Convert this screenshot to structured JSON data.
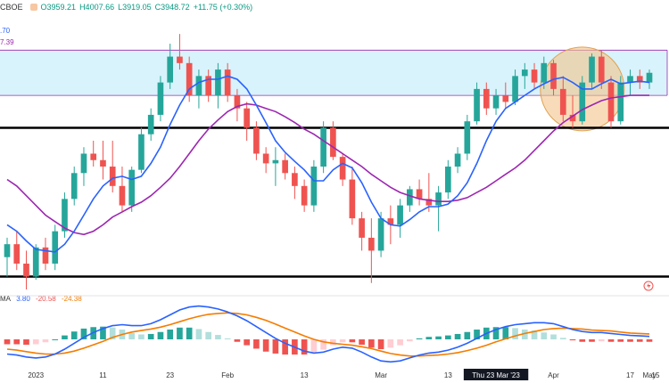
{
  "header": {
    "symbol": "CBOE",
    "open": "O3959.21",
    "high": "H4007.66",
    "low": "L3919.05",
    "close": "C3948.72",
    "change": "+11.75 (+0.30%)"
  },
  "ma_values": {
    "fast": ".70",
    "slow": "7.39"
  },
  "macd_legend": {
    "label": "MA",
    "macd": "3.80",
    "hist": "-20.58",
    "signal": "-24.38"
  },
  "colors": {
    "up": "#26a69a",
    "down": "#ef5350",
    "fast_ma": "#2962ff",
    "slow_ma": "#9c27b0",
    "zone_fill": "#d8f3fb",
    "zone_line": "#9c27b0",
    "circle_fill": "#f4c48a",
    "signal": "#f57c00",
    "macd_line": "#2962ff"
  },
  "chart_data": {
    "type": "candlestick",
    "price_range": [
      3800,
      4200
    ],
    "resistance_zone": [
      4100,
      4170
    ],
    "horizontal_levels": [
      4050,
      3820
    ],
    "x_tick_labels": [
      "2023",
      "11",
      "23",
      "Feb",
      "13",
      "Mar",
      "13",
      "Thu 23 Mar '23",
      "Apr",
      "17",
      "May",
      "15"
    ],
    "highlighted_date": "Thu 23 Mar '23",
    "candles": [
      {
        "o": 3850,
        "h": 3880,
        "l": 3820,
        "c": 3870
      },
      {
        "o": 3870,
        "h": 3890,
        "l": 3830,
        "c": 3840
      },
      {
        "o": 3840,
        "h": 3860,
        "l": 3800,
        "c": 3820
      },
      {
        "o": 3820,
        "h": 3870,
        "l": 3815,
        "c": 3865
      },
      {
        "o": 3865,
        "h": 3880,
        "l": 3830,
        "c": 3840
      },
      {
        "o": 3840,
        "h": 3900,
        "l": 3830,
        "c": 3890
      },
      {
        "o": 3890,
        "h": 3950,
        "l": 3880,
        "c": 3940
      },
      {
        "o": 3940,
        "h": 3990,
        "l": 3930,
        "c": 3980
      },
      {
        "o": 3980,
        "h": 4020,
        "l": 3960,
        "c": 4010
      },
      {
        "o": 4010,
        "h": 4030,
        "l": 3990,
        "c": 4000
      },
      {
        "o": 4000,
        "h": 4030,
        "l": 3970,
        "c": 3990
      },
      {
        "o": 3990,
        "h": 4030,
        "l": 3950,
        "c": 3960
      },
      {
        "o": 3960,
        "h": 3990,
        "l": 3920,
        "c": 3930
      },
      {
        "o": 3930,
        "h": 3990,
        "l": 3920,
        "c": 3985
      },
      {
        "o": 3985,
        "h": 4050,
        "l": 3980,
        "c": 4040
      },
      {
        "o": 4040,
        "h": 4080,
        "l": 4030,
        "c": 4070
      },
      {
        "o": 4070,
        "h": 4130,
        "l": 4060,
        "c": 4120
      },
      {
        "o": 4120,
        "h": 4180,
        "l": 4110,
        "c": 4160
      },
      {
        "o": 4160,
        "h": 4195,
        "l": 4140,
        "c": 4150
      },
      {
        "o": 4150,
        "h": 4160,
        "l": 4090,
        "c": 4100
      },
      {
        "o": 4100,
        "h": 4140,
        "l": 4080,
        "c": 4130
      },
      {
        "o": 4130,
        "h": 4140,
        "l": 4090,
        "c": 4100
      },
      {
        "o": 4100,
        "h": 4150,
        "l": 4080,
        "c": 4140
      },
      {
        "o": 4140,
        "h": 4150,
        "l": 4090,
        "c": 4100
      },
      {
        "o": 4100,
        "h": 4110,
        "l": 4060,
        "c": 4080
      },
      {
        "o": 4080,
        "h": 4090,
        "l": 4030,
        "c": 4050
      },
      {
        "o": 4050,
        "h": 4060,
        "l": 4000,
        "c": 4010
      },
      {
        "o": 4010,
        "h": 4020,
        "l": 3980,
        "c": 3995
      },
      {
        "o": 3995,
        "h": 4020,
        "l": 3960,
        "c": 4000
      },
      {
        "o": 4000,
        "h": 4010,
        "l": 3970,
        "c": 3980
      },
      {
        "o": 3980,
        "h": 3990,
        "l": 3940,
        "c": 3960
      },
      {
        "o": 3960,
        "h": 3970,
        "l": 3920,
        "c": 3930
      },
      {
        "o": 3930,
        "h": 4000,
        "l": 3920,
        "c": 3990
      },
      {
        "o": 3990,
        "h": 4060,
        "l": 3980,
        "c": 4050
      },
      {
        "o": 4050,
        "h": 4060,
        "l": 4000,
        "c": 4005
      },
      {
        "o": 4005,
        "h": 4010,
        "l": 3960,
        "c": 3970
      },
      {
        "o": 3970,
        "h": 3990,
        "l": 3900,
        "c": 3910
      },
      {
        "o": 3910,
        "h": 3920,
        "l": 3860,
        "c": 3880
      },
      {
        "o": 3880,
        "h": 3910,
        "l": 3810,
        "c": 3860
      },
      {
        "o": 3860,
        "h": 3920,
        "l": 3850,
        "c": 3910
      },
      {
        "o": 3910,
        "h": 3930,
        "l": 3870,
        "c": 3900
      },
      {
        "o": 3900,
        "h": 3940,
        "l": 3880,
        "c": 3930
      },
      {
        "o": 3930,
        "h": 3960,
        "l": 3920,
        "c": 3955
      },
      {
        "o": 3955,
        "h": 3970,
        "l": 3930,
        "c": 3940
      },
      {
        "o": 3940,
        "h": 3980,
        "l": 3920,
        "c": 3930
      },
      {
        "o": 3930,
        "h": 3960,
        "l": 3890,
        "c": 3950
      },
      {
        "o": 3950,
        "h": 4000,
        "l": 3940,
        "c": 3990
      },
      {
        "o": 3990,
        "h": 4020,
        "l": 3980,
        "c": 4010
      },
      {
        "o": 4010,
        "h": 4070,
        "l": 4000,
        "c": 4060
      },
      {
        "o": 4060,
        "h": 4120,
        "l": 4055,
        "c": 4110
      },
      {
        "o": 4110,
        "h": 4120,
        "l": 4070,
        "c": 4080
      },
      {
        "o": 4080,
        "h": 4110,
        "l": 4070,
        "c": 4100
      },
      {
        "o": 4100,
        "h": 4120,
        "l": 4080,
        "c": 4090
      },
      {
        "o": 4090,
        "h": 4140,
        "l": 4085,
        "c": 4130
      },
      {
        "o": 4130,
        "h": 4150,
        "l": 4110,
        "c": 4140
      },
      {
        "o": 4140,
        "h": 4150,
        "l": 4110,
        "c": 4120
      },
      {
        "o": 4120,
        "h": 4160,
        "l": 4110,
        "c": 4150
      },
      {
        "o": 4150,
        "h": 4155,
        "l": 4100,
        "c": 4110
      },
      {
        "o": 4110,
        "h": 4130,
        "l": 4060,
        "c": 4070
      },
      {
        "o": 4070,
        "h": 4100,
        "l": 4050,
        "c": 4060
      },
      {
        "o": 4060,
        "h": 4130,
        "l": 4055,
        "c": 4120
      },
      {
        "o": 4120,
        "h": 4165,
        "l": 4110,
        "c": 4160
      },
      {
        "o": 4160,
        "h": 4170,
        "l": 4110,
        "c": 4120
      },
      {
        "o": 4120,
        "h": 4130,
        "l": 4050,
        "c": 4060
      },
      {
        "o": 4060,
        "h": 4130,
        "l": 4055,
        "c": 4120
      },
      {
        "o": 4120,
        "h": 4140,
        "l": 4100,
        "c": 4130
      },
      {
        "o": 4130,
        "h": 4140,
        "l": 4110,
        "c": 4120
      },
      {
        "o": 4120,
        "h": 4140,
        "l": 4110,
        "c": 4135
      }
    ],
    "fast_ma": [
      3900,
      3890,
      3875,
      3862,
      3860,
      3858,
      3870,
      3890,
      3915,
      3940,
      3960,
      3972,
      3975,
      3970,
      3975,
      3995,
      4020,
      4055,
      4085,
      4110,
      4120,
      4125,
      4125,
      4130,
      4125,
      4110,
      4085,
      4058,
      4030,
      4012,
      3998,
      3985,
      3968,
      3968,
      3985,
      3995,
      3988,
      3965,
      3935,
      3910,
      3900,
      3898,
      3908,
      3920,
      3928,
      3928,
      3932,
      3945,
      3965,
      3995,
      4030,
      4060,
      4080,
      4090,
      4100,
      4110,
      4118,
      4125,
      4128,
      4120,
      4110,
      4110,
      4118,
      4125,
      4118,
      4120,
      4122,
      4120
    ],
    "slow_ma": [
      3970,
      3960,
      3945,
      3930,
      3915,
      3905,
      3895,
      3888,
      3885,
      3890,
      3900,
      3912,
      3920,
      3928,
      3935,
      3945,
      3958,
      3972,
      3990,
      4010,
      4030,
      4048,
      4062,
      4075,
      4083,
      4087,
      4085,
      4080,
      4075,
      4067,
      4058,
      4048,
      4040,
      4030,
      4020,
      4010,
      4000,
      3990,
      3978,
      3968,
      3958,
      3950,
      3945,
      3940,
      3938,
      3936,
      3936,
      3938,
      3942,
      3950,
      3958,
      3968,
      3978,
      3988,
      4000,
      4015,
      4030,
      4045,
      4058,
      4068,
      4078,
      4085,
      4092,
      4096,
      4098,
      4100,
      4100,
      4100
    ],
    "macd": {
      "macd_line": [
        -30,
        -32,
        -36,
        -38,
        -36,
        -30,
        -20,
        -8,
        4,
        14,
        22,
        28,
        30,
        28,
        28,
        32,
        40,
        50,
        60,
        66,
        68,
        66,
        62,
        56,
        48,
        38,
        26,
        14,
        2,
        -8,
        -16,
        -24,
        -28,
        -26,
        -20,
        -16,
        -18,
        -26,
        -36,
        -44,
        -46,
        -44,
        -38,
        -32,
        -28,
        -26,
        -22,
        -16,
        -8,
        2,
        12,
        20,
        26,
        30,
        32,
        34,
        34,
        32,
        26,
        20,
        16,
        14,
        14,
        12,
        10,
        8,
        7,
        6
      ],
      "signal_line": [
        -20,
        -22,
        -25,
        -28,
        -30,
        -30,
        -28,
        -24,
        -18,
        -11,
        -4,
        4,
        10,
        15,
        18,
        21,
        25,
        30,
        36,
        42,
        47,
        51,
        53,
        54,
        53,
        50,
        45,
        39,
        31,
        23,
        15,
        7,
        0,
        -5,
        -8,
        -10,
        -12,
        -15,
        -19,
        -24,
        -29,
        -32,
        -34,
        -34,
        -33,
        -32,
        -30,
        -27,
        -23,
        -18,
        -12,
        -5,
        1,
        7,
        12,
        16,
        20,
        22,
        23,
        22,
        21,
        19,
        18,
        17,
        15,
        13,
        12,
        11
      ],
      "histogram": [
        -10,
        -10,
        -11,
        -10,
        -6,
        0,
        8,
        16,
        22,
        25,
        26,
        24,
        20,
        13,
        10,
        11,
        15,
        20,
        24,
        24,
        21,
        15,
        9,
        2,
        -5,
        -12,
        -19,
        -25,
        -29,
        -31,
        -31,
        -31,
        -28,
        -21,
        -12,
        -6,
        -6,
        -11,
        -17,
        -20,
        -17,
        -12,
        -4,
        2,
        5,
        6,
        8,
        11,
        15,
        20,
        24,
        25,
        25,
        23,
        20,
        18,
        14,
        10,
        3,
        -2,
        -5,
        -5,
        -4,
        -5,
        -5,
        -5,
        -5,
        -5
      ]
    }
  }
}
